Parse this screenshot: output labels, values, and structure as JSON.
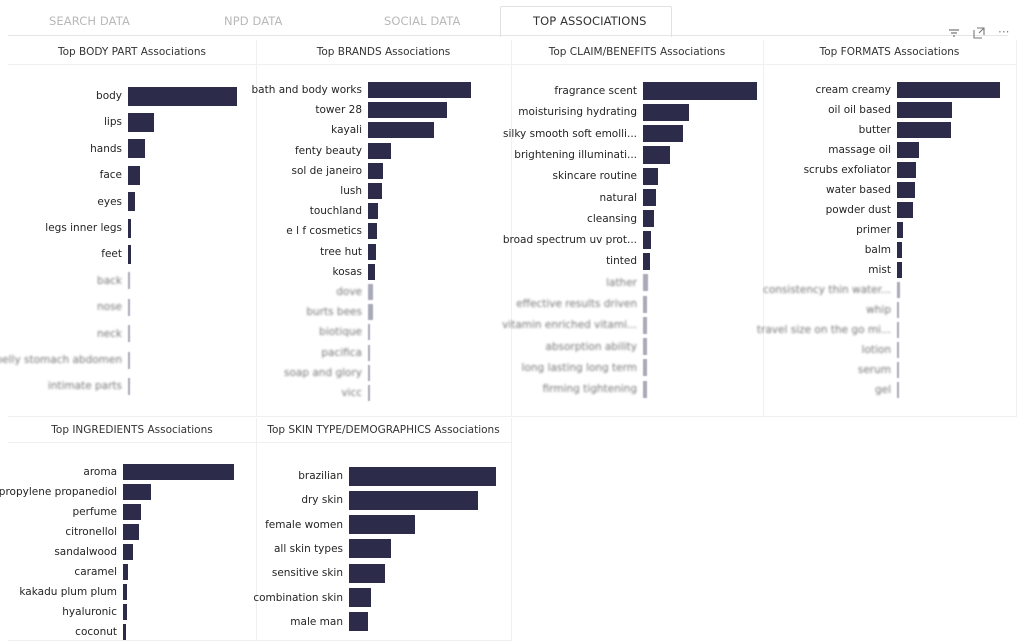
{
  "tabs": [
    {
      "label": "SEARCH DATA",
      "active": false
    },
    {
      "label": "NPD DATA",
      "active": false
    },
    {
      "label": "SOCIAL DATA",
      "active": false
    },
    {
      "label": "TOP ASSOCIATIONS",
      "active": true
    }
  ],
  "toolbar": {
    "filter_icon": "filter-icon",
    "focus_icon": "focus-mode-icon",
    "more_label": "···"
  },
  "colors": {
    "bar": "#2c2c4a",
    "bar_faded": "#a9a9b8"
  },
  "chart_data": [
    {
      "type": "bar",
      "orientation": "horizontal",
      "title": "Top BODY PART Associations",
      "blurred_from_index": 7,
      "categories": [
        "body",
        "lips",
        "hands",
        "face",
        "eyes",
        "legs inner legs",
        "feet",
        "back",
        "nose",
        "neck",
        "belly stomach abdomen",
        "intimate parts"
      ],
      "values": [
        109,
        26,
        17,
        12,
        7,
        3,
        3,
        1.5,
        1.5,
        1.5,
        1.5,
        1.5
      ]
    },
    {
      "type": "bar",
      "orientation": "horizontal",
      "title": "Top BRANDS Associations",
      "blurred_from_index": 10,
      "categories": [
        "bath and body works",
        "tower 28",
        "kayali",
        "fenty beauty",
        "sol de janeiro",
        "lush",
        "touchland",
        "e l f cosmetics",
        "tree hut",
        "kosas",
        "dove",
        "burts bees",
        "biotique",
        "pacifica",
        "soap and glory",
        "vicc"
      ],
      "values": [
        103,
        79,
        66,
        23,
        15,
        14,
        10,
        9,
        8,
        7,
        5,
        5,
        2,
        2,
        2,
        2
      ]
    },
    {
      "type": "bar",
      "orientation": "horizontal",
      "title": "Top CLAIM/BENEFITS Associations",
      "blurred_from_index": 9,
      "categories": [
        "fragrance scent",
        "moisturising hydrating",
        "silky smooth soft emolli...",
        "brightening illuminati...",
        "skincare routine",
        "natural",
        "cleansing",
        "broad spectrum uv prot...",
        "tinted",
        "lather",
        "effective results driven",
        "vitamin enriched vitami...",
        "absorption ability",
        "long lasting long term",
        "firming tightening"
      ],
      "values": [
        114,
        46,
        40,
        27,
        15,
        13,
        11,
        8,
        7,
        5,
        4,
        4,
        4,
        4,
        4
      ]
    },
    {
      "type": "bar",
      "orientation": "horizontal",
      "title": "Top FORMATS Associations",
      "blurred_from_index": 10,
      "categories": [
        "cream creamy",
        "oil oil based",
        "butter",
        "massage oil",
        "scrubs exfoliator",
        "water based",
        "powder dust",
        "primer",
        "balm",
        "mist",
        "consistency thin water...",
        "whip",
        "travel size on the go mi...",
        "lotion",
        "serum",
        "gel"
      ],
      "values": [
        103,
        55,
        54,
        22,
        19,
        18,
        16,
        6,
        5,
        5,
        3,
        2,
        2,
        2,
        2,
        2
      ]
    },
    {
      "type": "bar",
      "orientation": "horizontal",
      "title": "Top INGREDIENTS Associations",
      "blurred_from_index": 99,
      "categories": [
        "aroma",
        "propylene propanediol",
        "perfume",
        "citronellol",
        "sandalwood",
        "caramel",
        "kakadu plum plum",
        "hyaluronic",
        "coconut"
      ],
      "values": [
        111,
        28,
        18,
        16,
        10,
        5,
        4,
        4,
        3
      ]
    },
    {
      "type": "bar",
      "orientation": "horizontal",
      "title": "Top SKIN TYPE/DEMOGRAPHICS Associations",
      "blurred_from_index": 99,
      "categories": [
        "brazilian",
        "dry skin",
        "female women",
        "all skin types",
        "sensitive skin",
        "combination skin",
        "male man"
      ],
      "values": [
        147,
        129,
        66,
        42,
        36,
        22,
        19
      ]
    }
  ]
}
